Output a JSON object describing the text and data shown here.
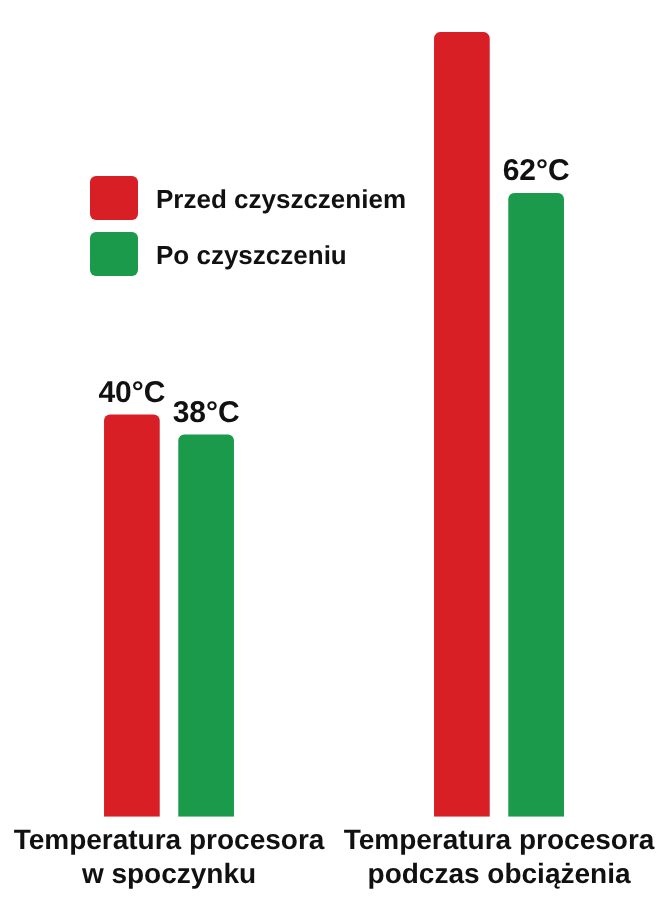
{
  "chart_data": {
    "type": "bar",
    "categories": [
      "Temperatura procesora w spoczynku",
      "Temperatura procesora podczas obciążenia"
    ],
    "series": [
      {
        "name": "Przed czyszczeniem",
        "color": "#d81f26",
        "values": [
          40,
          78
        ],
        "value_labels": [
          "40°C",
          null
        ]
      },
      {
        "name": "Po czyszczeniu",
        "color": "#1a9a4a",
        "values": [
          38,
          62
        ],
        "value_labels": [
          "38°C",
          "62°C"
        ]
      }
    ],
    "tick_labels": "x",
    "grid": false,
    "legend": "top left"
  }
}
